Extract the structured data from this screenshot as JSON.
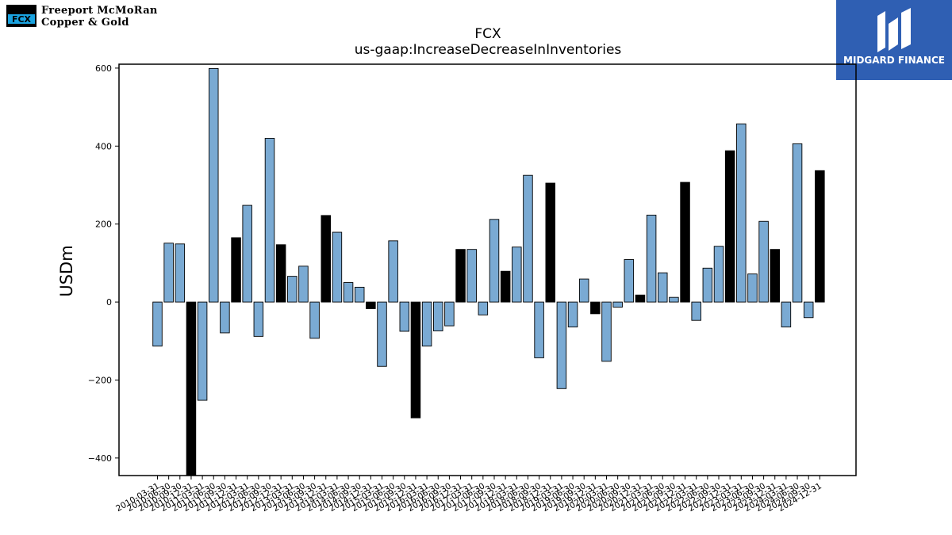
{
  "header": {
    "company_line1": "Freeport McMoRan",
    "company_line2": "Copper & Gold",
    "logo_mark_text": "FCX",
    "right_logo_text": "MIDGARD FINANCE"
  },
  "colors": {
    "bar_default": "#7aaad3",
    "bar_highlight": "#000000",
    "bar_edge": "#000000",
    "logo_blue": "#2f5fb3",
    "logo_mark_blue": "#1aa3e0"
  },
  "chart_data": {
    "type": "bar",
    "title": "FCX",
    "subtitle": "us-gaap:IncreaseDecreaseInInventories",
    "xlabel": "",
    "ylabel": "USDm",
    "ylim": [
      -445,
      610
    ],
    "yticks": [
      -400,
      -200,
      0,
      200,
      400,
      600
    ],
    "ytick_labels": [
      "−400",
      "−200",
      "0",
      "200",
      "400",
      "600"
    ],
    "grid": false,
    "legend": "none",
    "categories": [
      "2010-03-31",
      "2010-06-30",
      "2010-09-30",
      "2010-12-31",
      "2011-03-31",
      "2011-06-30",
      "2011-09-30",
      "2011-12-31",
      "2012-03-31",
      "2012-06-30",
      "2012-09-30",
      "2012-12-31",
      "2013-03-31",
      "2013-06-30",
      "2013-09-30",
      "2013-12-31",
      "2014-03-31",
      "2014-06-30",
      "2014-09-30",
      "2014-12-31",
      "2015-03-31",
      "2015-06-30",
      "2015-09-30",
      "2015-12-31",
      "2016-03-31",
      "2016-06-30",
      "2016-09-30",
      "2016-12-31",
      "2017-03-31",
      "2017-06-30",
      "2017-09-30",
      "2017-12-31",
      "2018-03-31",
      "2018-06-30",
      "2018-09-30",
      "2018-12-31",
      "2019-03-31",
      "2019-06-30",
      "2019-09-30",
      "2019-12-31",
      "2020-03-31",
      "2020-06-30",
      "2020-09-30",
      "2020-12-31",
      "2021-03-31",
      "2021-06-30",
      "2021-09-30",
      "2021-12-31",
      "2022-03-31",
      "2022-06-30",
      "2022-09-30",
      "2022-12-31",
      "2023-03-31",
      "2023-06-30",
      "2023-09-30",
      "2023-12-31",
      "2024-03-31",
      "2024-06-30",
      "2024-09-30",
      "2024-12-31"
    ],
    "values": [
      -113,
      151,
      149,
      -445,
      -252,
      599,
      -79,
      165,
      248,
      -88,
      420,
      147,
      66,
      92,
      -93,
      222,
      179,
      50,
      38,
      -17,
      -165,
      157,
      -75,
      -297,
      -113,
      -74,
      -61,
      135,
      135,
      -33,
      212,
      79,
      141,
      325,
      -143,
      305,
      -222,
      -64,
      59,
      -30,
      -152,
      -13,
      109,
      18,
      223,
      75,
      12,
      307,
      -47,
      87,
      143,
      388,
      457,
      72,
      207,
      135,
      -64,
      406,
      -40,
      337
    ],
    "highlight": [
      false,
      false,
      false,
      true,
      false,
      false,
      false,
      true,
      false,
      false,
      false,
      true,
      false,
      false,
      false,
      true,
      false,
      false,
      false,
      true,
      false,
      false,
      false,
      true,
      false,
      false,
      false,
      true,
      false,
      false,
      false,
      true,
      false,
      false,
      false,
      true,
      false,
      false,
      false,
      true,
      false,
      false,
      false,
      true,
      false,
      false,
      false,
      true,
      false,
      false,
      false,
      true,
      false,
      false,
      false,
      true,
      false,
      false,
      false,
      true
    ]
  }
}
